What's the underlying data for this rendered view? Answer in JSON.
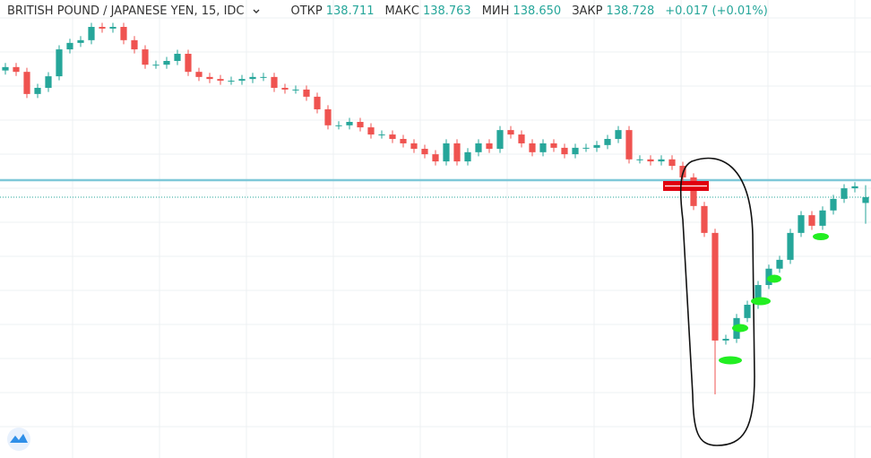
{
  "header": {
    "title": "BRITISH POUND / JAPANESE YEN, 15, IDC",
    "open_label": "ОТКР",
    "open": "138.711",
    "high_label": "МАКС",
    "high": "138.763",
    "low_label": "МИН",
    "low": "138.650",
    "close_label": "ЗАКР",
    "close": "138.728",
    "change": "+0.017 (+0.01%)"
  },
  "chart_data": {
    "type": "candlestick",
    "up_color": "#26a69a",
    "down_color": "#ef5350",
    "ylim": [
      137.962,
      139.307
    ],
    "grid": true,
    "level": 138.778,
    "level_color": "#7ec8d8",
    "open": [
      139.1,
      139.11,
      139.096,
      139.031,
      139.049,
      139.083,
      139.162,
      139.181,
      139.189,
      139.228,
      139.223,
      139.228,
      139.189,
      139.162,
      139.117,
      139.117,
      139.128,
      139.149,
      139.096,
      139.081,
      139.075,
      139.07,
      139.07,
      139.075,
      139.081,
      139.081,
      139.049,
      139.044,
      139.044,
      139.023,
      138.986,
      138.939,
      138.939,
      138.949,
      138.933,
      138.912,
      138.912,
      138.899,
      138.886,
      138.87,
      138.854,
      138.833,
      138.886,
      138.833,
      138.86,
      138.886,
      138.87,
      138.925,
      138.912,
      138.886,
      138.86,
      138.886,
      138.873,
      138.854,
      138.873,
      138.873,
      138.881,
      138.899,
      138.925,
      138.839,
      138.839,
      138.833,
      138.839,
      138.82,
      138.786,
      138.702,
      138.623,
      138.307,
      138.312,
      138.373,
      138.412,
      138.47,
      138.518,
      138.544,
      138.623,
      138.675,
      138.644,
      138.689,
      138.723,
      138.754,
      138.711
    ],
    "high": [
      139.122,
      139.122,
      139.108,
      139.061,
      139.095,
      139.174,
      139.193,
      139.201,
      139.24,
      139.24,
      139.24,
      139.24,
      139.201,
      139.174,
      139.129,
      139.14,
      139.161,
      139.161,
      139.108,
      139.093,
      139.087,
      139.082,
      139.087,
      139.093,
      139.093,
      139.093,
      139.061,
      139.056,
      139.056,
      139.035,
      138.998,
      138.951,
      138.961,
      138.961,
      138.945,
      138.924,
      138.924,
      138.911,
      138.898,
      138.882,
      138.866,
      138.898,
      138.898,
      138.872,
      138.898,
      138.898,
      138.937,
      138.937,
      138.924,
      138.898,
      138.898,
      138.898,
      138.885,
      138.885,
      138.885,
      138.893,
      138.911,
      138.937,
      138.937,
      138.851,
      138.851,
      138.851,
      138.851,
      138.832,
      138.798,
      138.714,
      138.635,
      138.324,
      138.385,
      138.424,
      138.482,
      138.53,
      138.556,
      138.635,
      138.687,
      138.687,
      138.701,
      138.735,
      138.766,
      138.772,
      138.763
    ],
    "low": [
      139.088,
      139.084,
      139.019,
      139.019,
      139.037,
      139.071,
      139.15,
      139.169,
      139.177,
      139.211,
      139.211,
      139.177,
      139.15,
      139.105,
      139.105,
      139.105,
      139.116,
      139.084,
      139.069,
      139.063,
      139.058,
      139.058,
      139.058,
      139.063,
      139.069,
      139.037,
      139.032,
      139.032,
      139.011,
      138.974,
      138.927,
      138.927,
      138.927,
      138.921,
      138.9,
      138.9,
      138.887,
      138.874,
      138.858,
      138.842,
      138.821,
      138.821,
      138.821,
      138.821,
      138.848,
      138.858,
      138.858,
      138.9,
      138.874,
      138.848,
      138.848,
      138.861,
      138.842,
      138.842,
      138.861,
      138.861,
      138.869,
      138.887,
      138.827,
      138.827,
      138.821,
      138.821,
      138.808,
      138.774,
      138.69,
      138.611,
      138.149,
      138.295,
      138.3,
      138.361,
      138.4,
      138.458,
      138.506,
      138.532,
      138.611,
      138.632,
      138.632,
      138.677,
      138.711,
      138.742,
      138.65
    ],
    "close": [
      139.11,
      139.096,
      139.031,
      139.049,
      139.083,
      139.162,
      139.181,
      139.189,
      139.228,
      139.223,
      139.228,
      139.189,
      139.162,
      139.117,
      139.117,
      139.128,
      139.149,
      139.096,
      139.081,
      139.075,
      139.07,
      139.07,
      139.075,
      139.081,
      139.081,
      139.049,
      139.044,
      139.044,
      139.023,
      138.986,
      138.939,
      138.939,
      138.949,
      138.933,
      138.912,
      138.912,
      138.899,
      138.886,
      138.87,
      138.854,
      138.833,
      138.886,
      138.833,
      138.86,
      138.886,
      138.87,
      138.925,
      138.912,
      138.886,
      138.86,
      138.886,
      138.873,
      138.854,
      138.873,
      138.873,
      138.881,
      138.899,
      138.925,
      138.839,
      138.839,
      138.833,
      138.839,
      138.82,
      138.786,
      138.702,
      138.623,
      138.307,
      138.312,
      138.373,
      138.412,
      138.47,
      138.518,
      138.544,
      138.623,
      138.675,
      138.644,
      138.689,
      138.723,
      138.754,
      138.76,
      138.728
    ]
  }
}
